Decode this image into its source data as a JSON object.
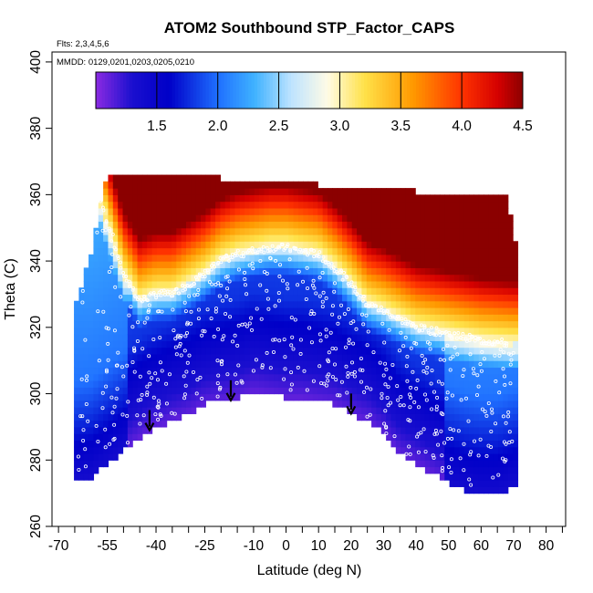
{
  "chart_data": {
    "type": "heatmap",
    "title": "ATOM2 Southbound STP_Factor_CAPS",
    "subtitle_flights": "Flts: 2,3,4,5,6",
    "subtitle_dates": "MMDD: 0129,0201,0203,0205,0210",
    "xlabel": "Latitude (deg N)",
    "ylabel": "Theta (C)",
    "xlim": [
      -72,
      86
    ],
    "ylim": [
      260,
      403
    ],
    "x_ticks": [
      -70,
      -55,
      -40,
      -25,
      -10,
      0,
      10,
      20,
      30,
      40,
      50,
      60,
      70,
      80
    ],
    "x_tick_labels": [
      "-70",
      "-55",
      "-40",
      "-25",
      "-10",
      "0",
      "10",
      "20",
      "30",
      "40",
      "50",
      "60",
      "70",
      "80"
    ],
    "x_minor_ticks": [
      -65,
      -60,
      -50,
      -45,
      -35,
      -30,
      -20,
      -15,
      -5,
      5,
      15,
      25,
      35,
      45,
      55,
      65,
      75,
      85
    ],
    "y_ticks": [
      260,
      280,
      300,
      320,
      340,
      360,
      380,
      400
    ],
    "y_tick_labels": [
      "260",
      "280",
      "300",
      "320",
      "340",
      "360",
      "380",
      "400"
    ],
    "colorbar": {
      "min": 1.0,
      "max": 4.5,
      "ticks": [
        1.5,
        2.0,
        2.5,
        3.0,
        3.5,
        4.0,
        4.5
      ],
      "tick_labels": [
        "1.5",
        "2.0",
        "2.5",
        "3.0",
        "3.5",
        "4.0",
        "4.5"
      ],
      "stops": [
        {
          "v": 1.0,
          "color": "#8b2be2"
        },
        {
          "v": 1.3,
          "color": "#1a0fcf"
        },
        {
          "v": 1.6,
          "color": "#0000c8"
        },
        {
          "v": 2.0,
          "color": "#1f6fff"
        },
        {
          "v": 2.3,
          "color": "#3fb2ff"
        },
        {
          "v": 2.6,
          "color": "#bde3ff"
        },
        {
          "v": 2.9,
          "color": "#fffbe6"
        },
        {
          "v": 3.2,
          "color": "#ffe24a"
        },
        {
          "v": 3.6,
          "color": "#ff9900"
        },
        {
          "v": 4.0,
          "color": "#ff3300"
        },
        {
          "v": 4.3,
          "color": "#d40000"
        },
        {
          "v": 4.5,
          "color": "#8b0000"
        }
      ]
    },
    "tropopause_ridge": {
      "lat": [
        -57,
        -50,
        -45,
        -40,
        -35,
        -30,
        -25,
        -20,
        -15,
        -10,
        -5,
        0,
        5,
        10,
        15,
        20,
        25,
        30,
        40,
        50,
        60,
        70
      ],
      "theta": [
        358,
        336,
        328,
        330,
        330,
        333,
        336,
        340,
        342,
        343,
        344,
        344,
        343,
        342,
        338,
        333,
        327,
        325,
        320,
        318,
        316,
        315
      ]
    },
    "data_top_theta": {
      "lat": [
        -65,
        -60,
        -55,
        -50,
        -40,
        -30,
        -20,
        -10,
        0,
        10,
        20,
        30,
        40,
        50,
        60,
        68,
        70
      ],
      "theta": [
        325,
        342,
        366,
        365,
        365,
        365,
        364,
        363,
        363,
        362,
        362,
        361,
        360,
        360,
        359,
        360,
        346
      ]
    },
    "data_bottom_theta": {
      "lat": [
        -65,
        -60,
        -55,
        -50,
        -45,
        -42,
        -35,
        -30,
        -25,
        -20,
        -15,
        -10,
        -5,
        0,
        5,
        10,
        15,
        20,
        25,
        30,
        35,
        40,
        45,
        50,
        55,
        60,
        65,
        70
      ],
      "theta": [
        274,
        275,
        279,
        283,
        287,
        289,
        292,
        294,
        297,
        298,
        299,
        301,
        300,
        299,
        299,
        298,
        297,
        294,
        292,
        288,
        282,
        279,
        276,
        273,
        271,
        270,
        270,
        272
      ]
    },
    "arrows_lat": [
      -42,
      -17,
      20
    ],
    "arrows_tip_theta": [
      289,
      298,
      294
    ],
    "sample_points_note": "white circles mark flight sample locations"
  }
}
